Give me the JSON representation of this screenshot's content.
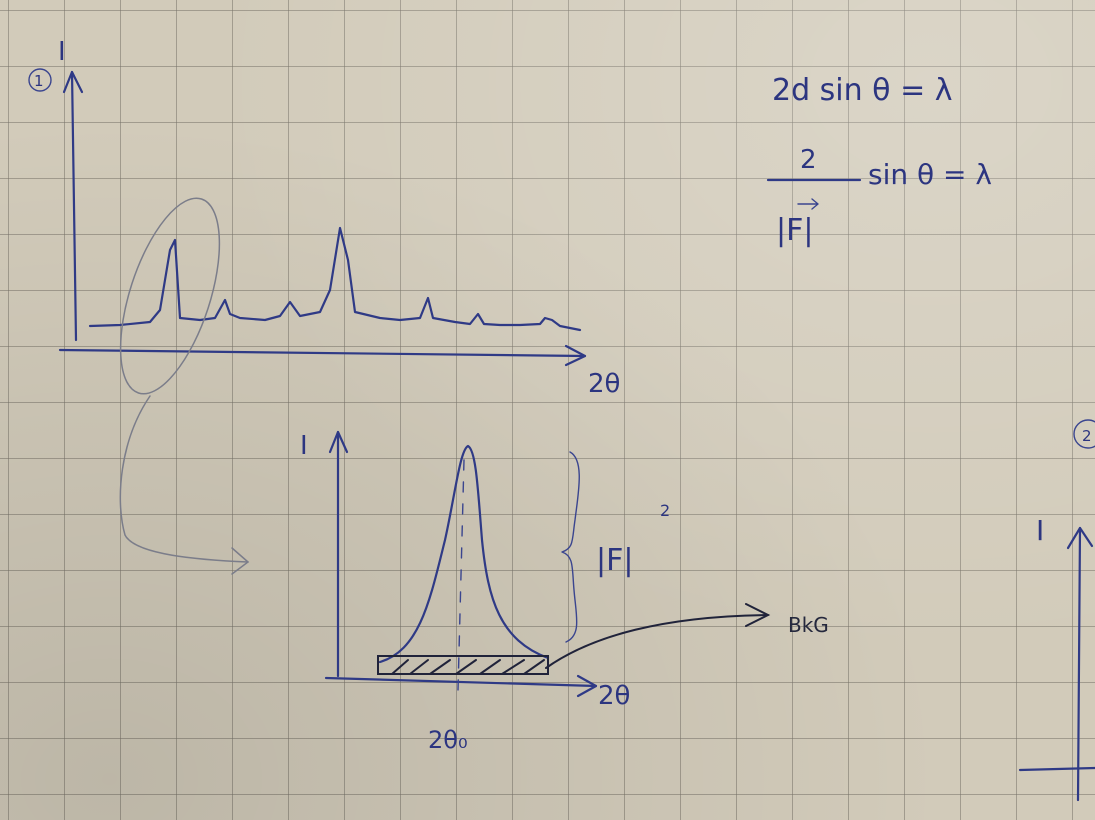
{
  "sketch": {
    "circled_number_1": "1",
    "circled_number_2": "2",
    "axis_label_intensity": "I",
    "axis_label_two_theta": "2θ",
    "equation_bragg": "2d sin θ = λ",
    "equation_structure_numerator": "2",
    "equation_structure_rest": "sin θ = λ",
    "equation_structure_denominator": "|F|",
    "peak_height_label": "|F|",
    "peak_height_exponent": "2",
    "background_label": "BkG",
    "peak_position_label": "2θ₀"
  }
}
